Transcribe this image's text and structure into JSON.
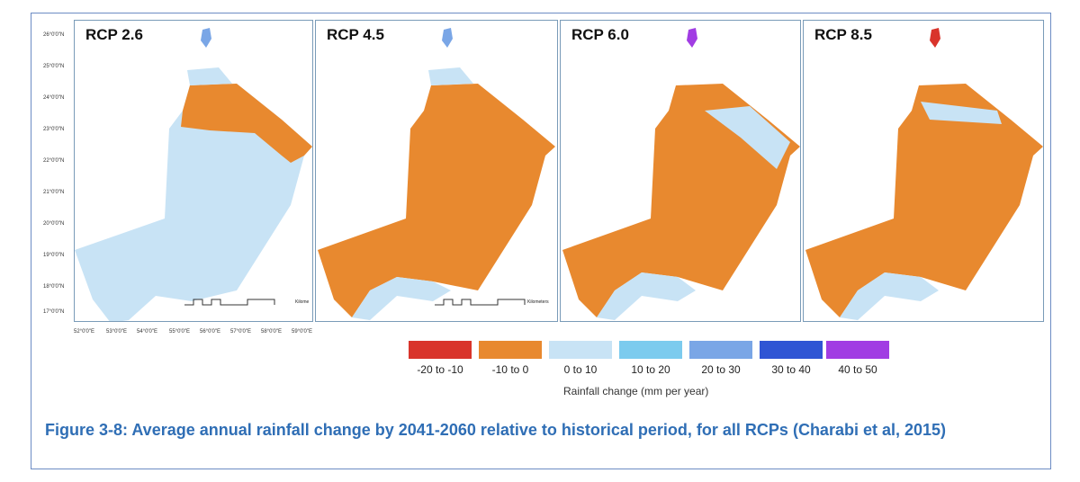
{
  "panels": [
    {
      "title": "RCP 2.6"
    },
    {
      "title": "RCP 4.5"
    },
    {
      "title": "RCP 6.0"
    },
    {
      "title": "RCP 8.5"
    }
  ],
  "lat_labels": [
    "26°0'0\"N",
    "25°0'0\"N",
    "24°0'0\"N",
    "23°0'0\"N",
    "22°0'0\"N",
    "21°0'0\"N",
    "20°0'0\"N",
    "19°0'0\"N",
    "18°0'0\"N",
    "17°0'0\"N"
  ],
  "lon_labels": [
    "52°0'0\"E",
    "53°0'0\"E",
    "54°0'0\"E",
    "55°0'0\"E",
    "56°0'0\"E",
    "57°0'0\"E",
    "58°0'0\"E",
    "59°0'0\"E"
  ],
  "scale": {
    "unit": "Kilometers",
    "ticks": [
      "0",
      "40",
      "80",
      "160",
      "240",
      "320"
    ]
  },
  "legend": {
    "title": "Rainfall change (mm per year)",
    "items": [
      {
        "label": "-20 to -10",
        "color": "#d9342b"
      },
      {
        "label": "-10 to 0",
        "color": "#e8892f"
      },
      {
        "label": "0 to 10",
        "color": "#c8e3f5"
      },
      {
        "label": "10 to 20",
        "color": "#7ccbee"
      },
      {
        "label": "20 to 30",
        "color": "#7aa6e6"
      },
      {
        "label": "30 to 40",
        "color": "#2f55d4"
      },
      {
        "label": "40 to 50",
        "color": "#a13de3"
      }
    ]
  },
  "caption": "Figure 3-8: Average annual rainfall change by 2041-2060 relative to historical period, for all RCPs (Charabi et al, 2015)"
}
